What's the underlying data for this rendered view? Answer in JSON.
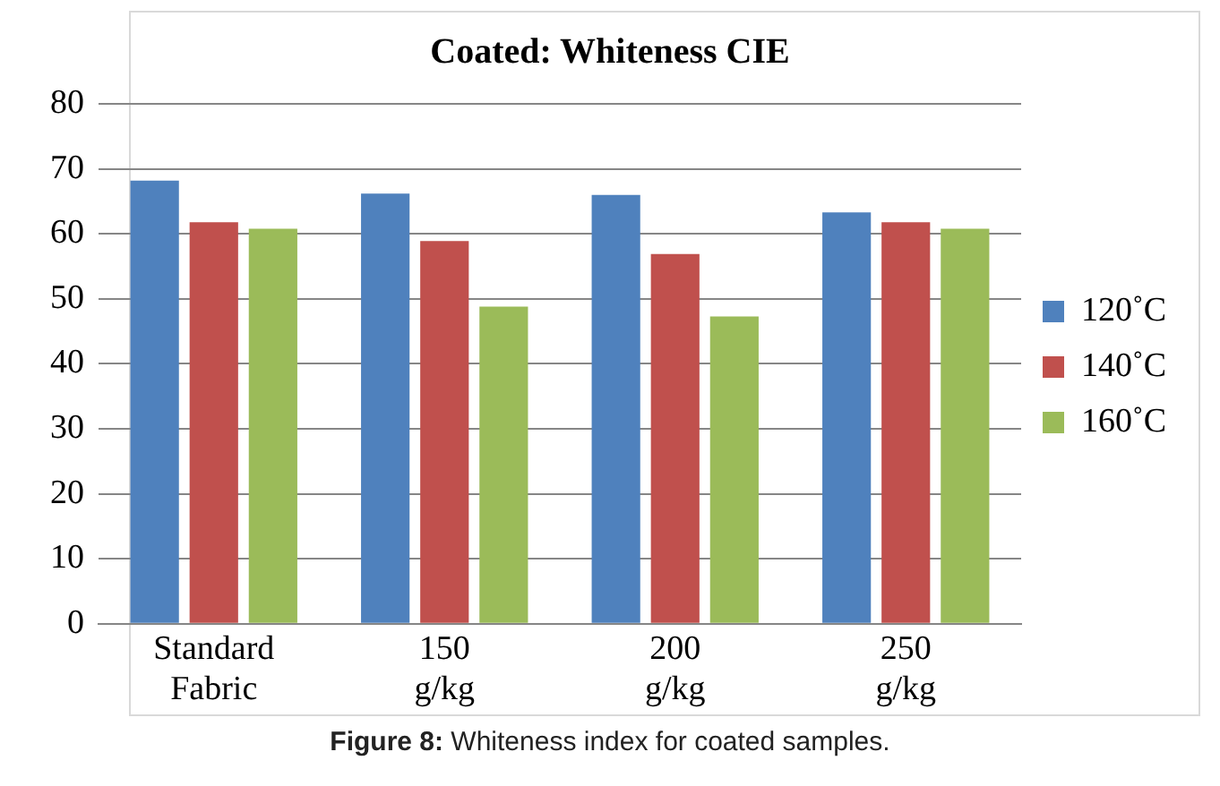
{
  "chart_data": {
    "type": "bar",
    "title": "Coated: Whiteness CIE",
    "categories": [
      "Standard Fabric",
      "150 g/kg",
      "200 g/kg",
      "250 g/kg"
    ],
    "series": [
      {
        "name": "120˚C",
        "color": "#4f81bd",
        "values": [
          68.2,
          66.2,
          66,
          63.3
        ]
      },
      {
        "name": "140˚C",
        "color": "#c0504d",
        "values": [
          61.8,
          58.9,
          56.9,
          61.8
        ]
      },
      {
        "name": "160˚C",
        "color": "#9bbb59",
        "values": [
          60.8,
          48.8,
          47.3,
          60.8
        ]
      }
    ],
    "ylim": [
      0,
      80
    ],
    "yticks": [
      0,
      10,
      20,
      30,
      40,
      50,
      60,
      70,
      80
    ],
    "grid": "y",
    "legend": "right",
    "annotations": [
      "Figure 8: Whiteness index for coated samples."
    ]
  }
}
